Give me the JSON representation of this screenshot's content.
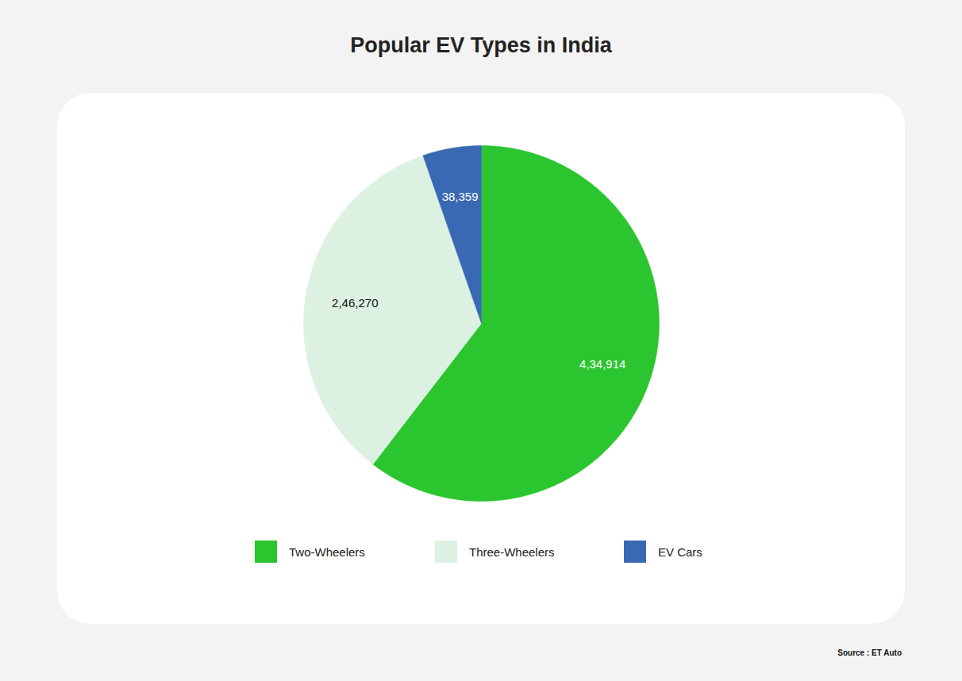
{
  "chart_data": {
    "type": "pie",
    "title": "Popular EV Types in India",
    "categories": [
      "Two-Wheelers",
      "Three-Wheelers",
      "EV Cars"
    ],
    "values": [
      434914,
      246270,
      38359
    ],
    "value_labels": [
      "4,34,914",
      "2,46,270",
      "38,359"
    ],
    "colors": [
      "#2bc52f",
      "#dcf1e2",
      "#3a69b3"
    ],
    "data_labels": true,
    "legend": "bottom",
    "caption": "Source : ET Auto"
  }
}
